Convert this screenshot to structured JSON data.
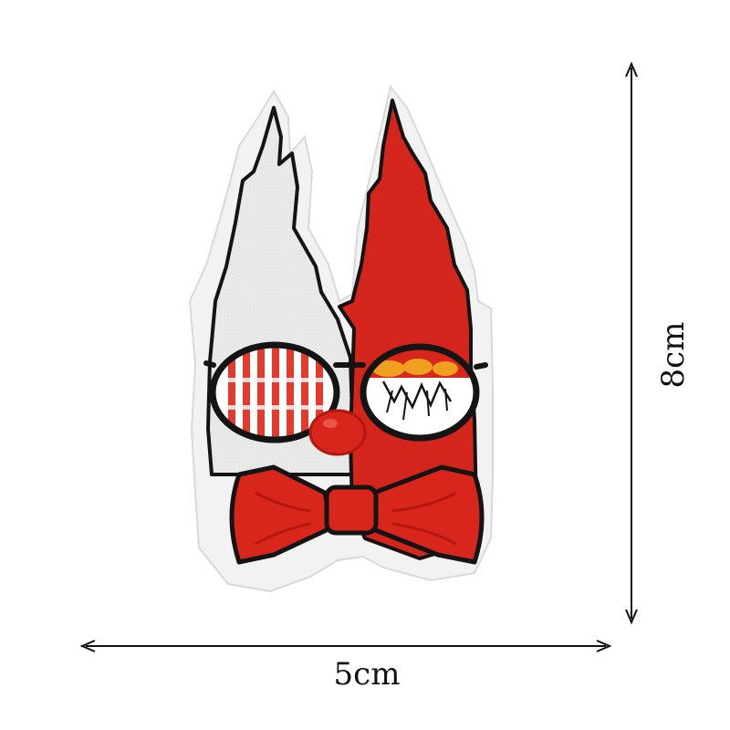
{
  "image": {
    "subject": "embroidered-patch",
    "colors": {
      "background": "#ffffff",
      "border": "#f2f2f2",
      "outline": "#141414",
      "red": "#d8261c",
      "red_dark": "#b3170f",
      "white_fill": "#eeeeee",
      "lens_stripe": "#e23a2c",
      "accent_orange": "#f0a020"
    }
  },
  "dimensions": {
    "width_label": "5cm",
    "height_label": "8cm"
  }
}
